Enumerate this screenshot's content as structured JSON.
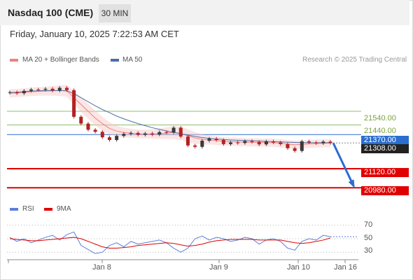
{
  "header": {
    "title": "Nasdaq 100 (CME)",
    "interval": "30 MIN"
  },
  "datetime": "Friday, January 10, 2025 7:22:53 AM CET",
  "legend": {
    "bollinger": {
      "label": "MA 20 + Bollinger Bands",
      "color": "#f08080"
    },
    "ma50": {
      "label": "MA 50",
      "color": "#4a6fa5"
    },
    "credit": "Research © 2025 Trading Central"
  },
  "rsi_legend": {
    "rsi": {
      "label": "RSI",
      "color": "#5b7fdb"
    },
    "ma9": {
      "label": "9MA",
      "color": "#e00000"
    }
  },
  "levels": {
    "r2": "21540.00",
    "r1": "21440.00",
    "pivot": "21370.00",
    "last": "21308.00",
    "s1": "21120.00",
    "s2": "20980.00"
  },
  "colors": {
    "support": "#e00000",
    "pivot": "#2a6ecf",
    "resistance": "#8cc06a",
    "last": "#222222",
    "candle_up": "#3a3a3a",
    "candle_down": "#b22222"
  },
  "rsi_ticks": [
    "70",
    "50",
    "30"
  ],
  "x_ticks": [
    "Jan 8",
    "Jan 9",
    "Jan 10",
    "Jan 16"
  ],
  "chart_data": [
    {
      "type": "line",
      "title": "",
      "x_labels": [
        "Jan 8",
        "Jan 9",
        "Jan 10",
        "Jan 16"
      ],
      "ylim": [
        20920,
        21740
      ],
      "series": [
        {
          "name": "Price",
          "values": [
            21680,
            21672,
            21690,
            21700,
            21698,
            21705,
            21692,
            21712,
            21695,
            21500,
            21450,
            21405,
            21390,
            21350,
            21330,
            21360,
            21375,
            21382,
            21368,
            21378,
            21370,
            21388,
            21385,
            21420,
            21355,
            21290,
            21280,
            21325,
            21340,
            21330,
            21300,
            21312,
            21308,
            21322,
            21316,
            21298,
            21320,
            21312,
            21300,
            21270,
            21250,
            21320,
            21312,
            21306,
            21318,
            21308
          ]
        },
        {
          "name": "MA 20",
          "values": [
            21672,
            21674,
            21678,
            21683,
            21686,
            21688,
            21690,
            21692,
            21690,
            21640,
            21590,
            21540,
            21490,
            21450,
            21415,
            21395,
            21385,
            21380,
            21375,
            21374,
            21374,
            21376,
            21380,
            21385,
            21378,
            21360,
            21345,
            21335,
            21330,
            21326,
            21320,
            21318,
            21316,
            21314,
            21313,
            21312,
            21311,
            21310,
            21306,
            21300,
            21295,
            21298,
            21302,
            21304,
            21306,
            21307
          ]
        },
        {
          "name": "MA 50",
          "values": [
            21678,
            21680,
            21684,
            21688,
            21690,
            21692,
            21692,
            21692,
            21690,
            21670,
            21640,
            21610,
            21580,
            21553,
            21530,
            21505,
            21485,
            21467,
            21450,
            21435,
            21420,
            21408,
            21396,
            21386,
            21377,
            21366,
            21356,
            21348,
            21342,
            21337,
            21333,
            21330,
            21328,
            21326,
            21324,
            21322,
            21320,
            21318,
            21316,
            21314,
            21312,
            21311,
            21310,
            21310,
            21310,
            21310
          ]
        }
      ],
      "levels": [
        21540,
        21440,
        21370,
        21308,
        21120,
        20980
      ]
    },
    {
      "type": "line",
      "title": "",
      "ylim": [
        20,
        80
      ],
      "y_ticks": [
        70,
        50,
        30
      ],
      "series": [
        {
          "name": "RSI",
          "values": [
            52,
            46,
            50,
            44,
            48,
            52,
            55,
            48,
            56,
            60,
            40,
            34,
            28,
            30,
            40,
            44,
            38,
            46,
            42,
            44,
            46,
            48,
            44,
            36,
            30,
            36,
            50,
            54,
            48,
            52,
            50,
            46,
            48,
            52,
            50,
            42,
            48,
            50,
            46,
            36,
            33,
            46,
            50,
            48,
            55,
            53
          ]
        },
        {
          "name": "9MA",
          "values": [
            50,
            49,
            48,
            47,
            47,
            48,
            49,
            50,
            51,
            52,
            50,
            46,
            42,
            38,
            36,
            36,
            37,
            38,
            40,
            41,
            42,
            43,
            44,
            43,
            41,
            39,
            40,
            42,
            45,
            47,
            48,
            49,
            49,
            49,
            49,
            48,
            48,
            48,
            48,
            46,
            44,
            43,
            44,
            46,
            48,
            51
          ]
        }
      ]
    }
  ]
}
